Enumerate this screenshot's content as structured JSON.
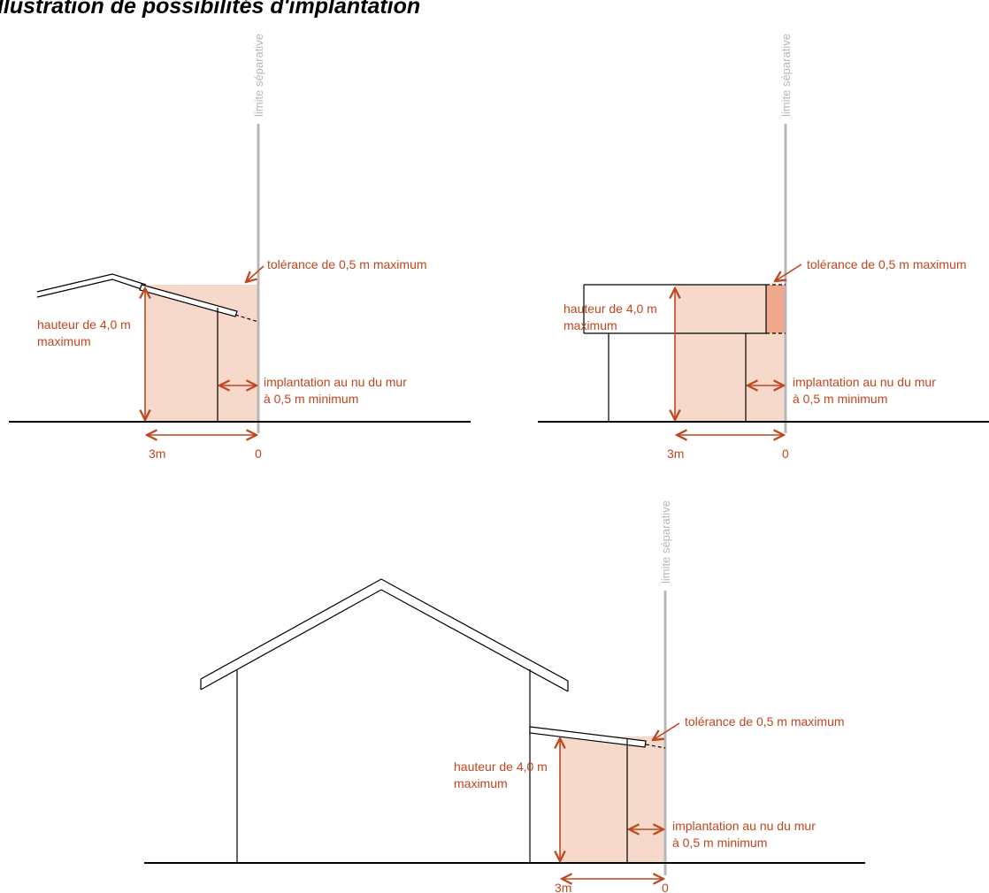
{
  "title": "Illustration de possibilités d'implantation",
  "colors": {
    "accent": "#c0461e",
    "zone_fill": "#f7d9cb",
    "tolerance_fill": "#efa88b",
    "limit_line": "#b7b7b7",
    "ground": "#000000"
  },
  "diagrams": [
    {
      "limit_label": "limite séparative",
      "tolerance_label": "tolérance de 0,5 m maximum",
      "height_label_1": "hauteur de 4,0 m",
      "height_label_2": "maximum",
      "setback_label_1": "implantation au nu du mur",
      "setback_label_2": "à 0,5 m minimum",
      "dist_left": "3m",
      "dist_right": "0"
    },
    {
      "limit_label": "limite séparative",
      "tolerance_label": "tolérance de 0,5 m maximum",
      "height_label_1": "hauteur de 4,0 m",
      "height_label_2": "maximum",
      "setback_label_1": "implantation au nu du mur",
      "setback_label_2": "à 0,5 m minimum",
      "dist_left": "3m",
      "dist_right": "0"
    },
    {
      "limit_label": "limite séparative",
      "tolerance_label": "tolérance de 0,5 m maximum",
      "height_label_1": "hauteur de 4,0 m",
      "height_label_2": "maximum",
      "setback_label_1": "implantation au nu du mur",
      "setback_label_2": "à 0,5 m minimum",
      "dist_left": "3m",
      "dist_right": "0"
    }
  ]
}
